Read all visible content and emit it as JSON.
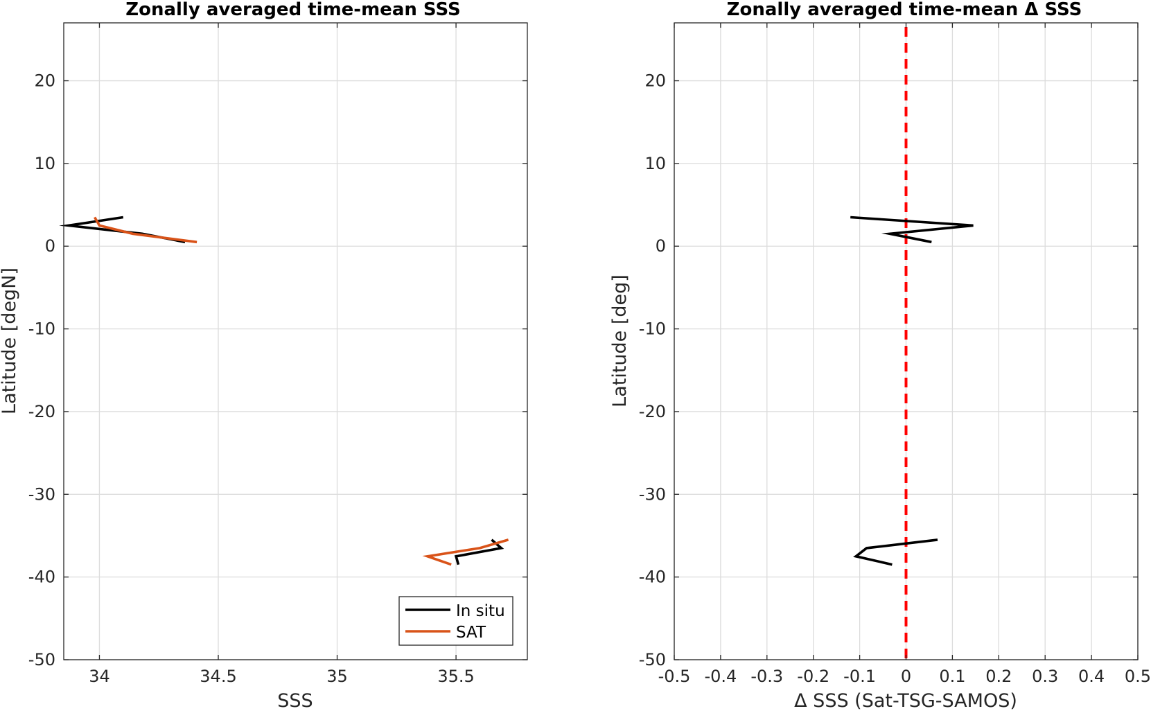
{
  "chart_data": [
    {
      "type": "line",
      "title": "Zonally averaged time-mean SSS",
      "xlabel": "SSS",
      "ylabel": "Latitude [degN]",
      "xlim": [
        33.85,
        35.8
      ],
      "ylim": [
        -50,
        27
      ],
      "xticks": [
        34,
        34.5,
        35,
        35.5
      ],
      "xtick_labels": [
        "34",
        "34.5",
        "35",
        "35.5"
      ],
      "yticks": [
        -50,
        -40,
        -30,
        -20,
        -10,
        0,
        10,
        20
      ],
      "ytick_labels": [
        "-50",
        "-40",
        "-30",
        "-20",
        "-10",
        "0",
        "10",
        "20"
      ],
      "grid": true,
      "legend_position": "bottom-right",
      "series": [
        {
          "name": "In situ",
          "color": "#000000",
          "segments": [
            [
              [
                34.1,
                3.5
              ],
              [
                33.87,
                2.5
              ],
              [
                34.18,
                1.5
              ],
              [
                34.36,
                0.5
              ]
            ],
            [
              [
                35.65,
                -35.5
              ],
              [
                35.69,
                -36.5
              ],
              [
                35.5,
                -37.5
              ],
              [
                35.51,
                -38.5
              ]
            ]
          ]
        },
        {
          "name": "SAT",
          "color": "#D95319",
          "segments": [
            [
              [
                33.98,
                3.5
              ],
              [
                34.0,
                2.5
              ],
              [
                34.14,
                1.5
              ],
              [
                34.41,
                0.5
              ]
            ],
            [
              [
                35.72,
                -35.5
              ],
              [
                35.6,
                -36.5
              ],
              [
                35.38,
                -37.5
              ],
              [
                35.48,
                -38.5
              ]
            ]
          ]
        }
      ]
    },
    {
      "type": "line",
      "title": "Zonally averaged time-mean Δ SSS",
      "xlabel": "Δ SSS (Sat-TSG-SAMOS)",
      "ylabel": "Latitude [deg]",
      "xlim": [
        -0.5,
        0.5
      ],
      "ylim": [
        -50,
        27
      ],
      "xticks": [
        -0.5,
        -0.4,
        -0.3,
        -0.2,
        -0.1,
        0,
        0.1,
        0.2,
        0.3,
        0.4,
        0.5
      ],
      "xtick_labels": [
        "-0.5",
        "-0.4",
        "-0.3",
        "-0.2",
        "-0.1",
        "0",
        "0.1",
        "0.2",
        "0.3",
        "0.4",
        "0.5"
      ],
      "yticks": [
        -50,
        -40,
        -30,
        -20,
        -10,
        0,
        10,
        20
      ],
      "ytick_labels": [
        "-50",
        "-40",
        "-30",
        "-20",
        "-10",
        "0",
        "10",
        "20"
      ],
      "grid": true,
      "reference_line": {
        "x": 0,
        "color": "#FF0000",
        "style": "dashed"
      },
      "series": [
        {
          "name": "",
          "color": "#000000",
          "segments": [
            [
              [
                -0.12,
                3.5
              ],
              [
                0.145,
                2.5
              ],
              [
                -0.035,
                1.5
              ],
              [
                0.055,
                0.5
              ]
            ],
            [
              [
                0.068,
                -35.5
              ],
              [
                -0.085,
                -36.5
              ],
              [
                -0.108,
                -37.5
              ],
              [
                -0.03,
                -38.5
              ]
            ]
          ]
        }
      ]
    }
  ]
}
